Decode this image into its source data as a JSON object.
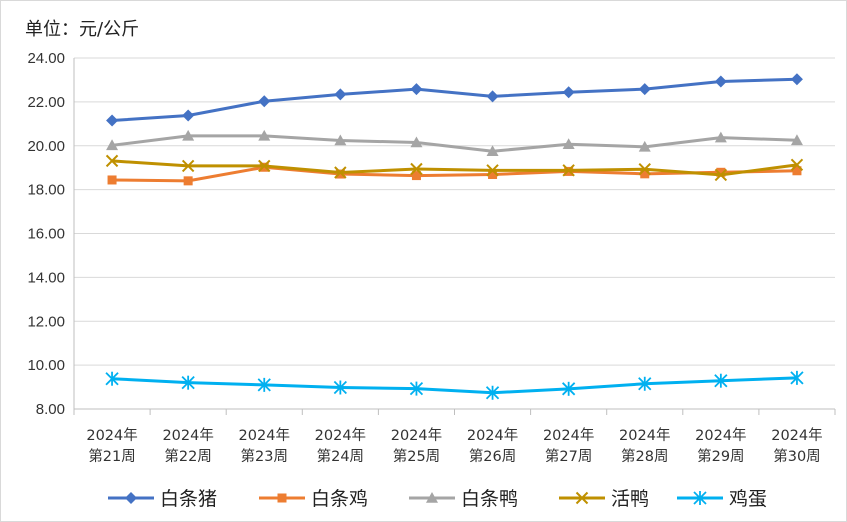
{
  "chart_data": {
    "type": "line",
    "unit_label": "单位：元/公斤",
    "title": "",
    "xlabel": "",
    "ylabel": "",
    "categories": [
      [
        "2024年",
        "第21周"
      ],
      [
        "2024年",
        "第22周"
      ],
      [
        "2024年",
        "第23周"
      ],
      [
        "2024年",
        "第24周"
      ],
      [
        "2024年",
        "第25周"
      ],
      [
        "2024年",
        "第26周"
      ],
      [
        "2024年",
        "第27周"
      ],
      [
        "2024年",
        "第28周"
      ],
      [
        "2024年",
        "第29周"
      ],
      [
        "2024年",
        "第30周"
      ]
    ],
    "ylim": [
      8,
      24
    ],
    "ystep": 2,
    "ytick_decimals": 2,
    "grid": "horizontal",
    "legend_position": "bottom",
    "series": [
      {
        "name": "白条猪",
        "color": "#4472C4",
        "marker": "diamond",
        "values": [
          21.15,
          21.38,
          22.03,
          22.34,
          22.58,
          22.25,
          22.44,
          22.58,
          22.93,
          23.03
        ]
      },
      {
        "name": "白条鸡",
        "color": "#ED7D31",
        "marker": "square",
        "values": [
          18.44,
          18.4,
          19.02,
          18.71,
          18.64,
          18.69,
          18.83,
          18.72,
          18.79,
          18.86
        ]
      },
      {
        "name": "白条鸭",
        "color": "#A5A5A5",
        "marker": "triangle",
        "values": [
          20.02,
          20.45,
          20.45,
          20.24,
          20.15,
          19.75,
          20.07,
          19.95,
          20.37,
          20.25
        ]
      },
      {
        "name": "活鸭",
        "color": "#BF9000",
        "marker": "x",
        "values": [
          19.31,
          19.08,
          19.08,
          18.78,
          18.94,
          18.88,
          18.88,
          18.93,
          18.67,
          19.13
        ]
      },
      {
        "name": "鸡蛋",
        "color": "#00B0F0",
        "marker": "star",
        "values": [
          9.38,
          9.2,
          9.1,
          8.98,
          8.93,
          8.74,
          8.92,
          9.15,
          9.29,
          9.42
        ]
      }
    ]
  }
}
